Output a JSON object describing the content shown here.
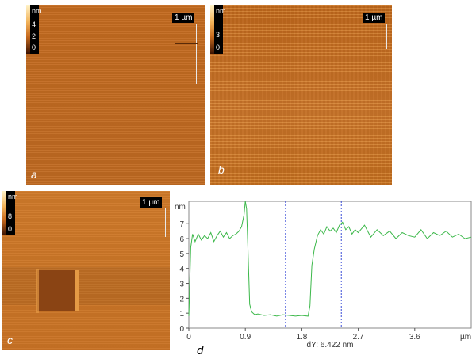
{
  "panels": {
    "a": {
      "letter": "a",
      "legend_unit": "nm",
      "legend_ticks": [
        "4",
        "2",
        "0"
      ],
      "scalebar": "1 µm"
    },
    "b": {
      "letter": "b",
      "legend_unit": "nm",
      "legend_ticks": [
        "3",
        "0"
      ],
      "scalebar": "1 µm"
    },
    "c": {
      "letter": "c",
      "legend_unit": "nm",
      "legend_ticks": [
        "8",
        "0"
      ],
      "scalebar": "1 µm"
    },
    "d": {
      "letter": "d"
    }
  },
  "chart_data": {
    "type": "line",
    "title": "",
    "xlabel": "",
    "ylabel": "",
    "y_unit_label": "nm",
    "x_unit_label": "µm",
    "xlim": [
      0,
      4.5
    ],
    "ylim": [
      0,
      8.5
    ],
    "x_ticks": [
      "0",
      "0.9",
      "1.8",
      "2.7",
      "3.6"
    ],
    "y_ticks": [
      "0",
      "1",
      "2",
      "3",
      "4",
      "5",
      "6",
      "7"
    ],
    "annotation": "dY: 6.422 nm",
    "cursor_lines_x": [
      1.54,
      2.43
    ],
    "line_color": "#3cb84a",
    "cursor_color": "#3b4ed8",
    "series": [
      {
        "x": [
          0,
          0.03,
          0.06,
          0.1,
          0.15,
          0.2,
          0.25,
          0.3,
          0.35,
          0.4,
          0.45,
          0.5,
          0.55,
          0.6,
          0.65,
          0.7,
          0.75,
          0.8,
          0.84,
          0.88,
          0.9,
          0.92,
          0.94,
          0.97,
          1.0,
          1.05,
          1.1,
          1.2,
          1.3,
          1.4,
          1.5,
          1.6,
          1.7,
          1.8,
          1.9,
          1.93,
          1.96,
          2.0,
          2.05,
          2.1,
          2.15,
          2.2,
          2.25,
          2.3,
          2.35,
          2.4,
          2.45,
          2.5,
          2.55,
          2.6,
          2.65,
          2.7,
          2.8,
          2.9,
          3.0,
          3.1,
          3.2,
          3.3,
          3.4,
          3.5,
          3.6,
          3.7,
          3.8,
          3.9,
          4.0,
          4.1,
          4.2,
          4.3,
          4.4,
          4.5
        ],
        "y": [
          0.8,
          5.4,
          6.3,
          5.8,
          6.3,
          5.9,
          6.2,
          6.0,
          6.4,
          5.8,
          6.2,
          6.5,
          6.1,
          6.4,
          6.0,
          6.2,
          6.3,
          6.5,
          6.8,
          7.6,
          8.5,
          8.0,
          5.5,
          1.6,
          1.1,
          0.9,
          0.95,
          0.85,
          0.9,
          0.8,
          0.9,
          0.85,
          0.8,
          0.85,
          0.8,
          1.5,
          4.2,
          5.3,
          6.2,
          6.6,
          6.3,
          6.8,
          6.5,
          6.7,
          6.4,
          6.9,
          7.1,
          6.6,
          6.8,
          6.3,
          6.6,
          6.4,
          6.9,
          6.1,
          6.6,
          6.2,
          6.5,
          6.0,
          6.4,
          6.2,
          6.1,
          6.6,
          6.0,
          6.4,
          6.2,
          6.5,
          6.1,
          6.3,
          6.0,
          6.1
        ]
      }
    ]
  }
}
